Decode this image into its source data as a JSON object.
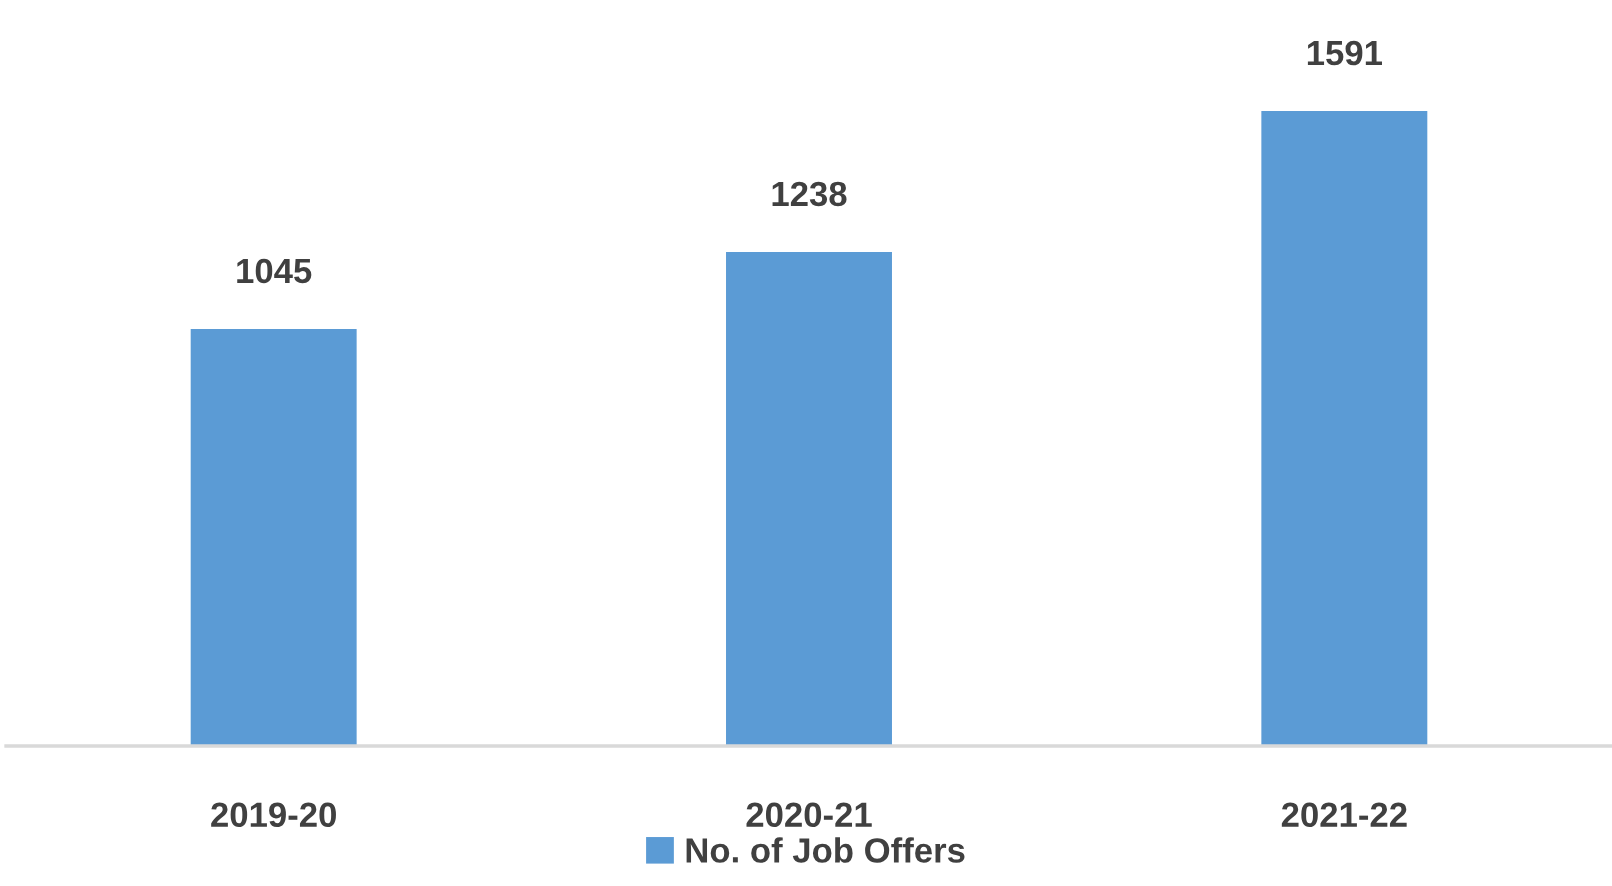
{
  "chart_data": {
    "type": "bar",
    "categories": [
      "2019-20",
      "2020-21",
      "2021-22"
    ],
    "series": [
      {
        "name": "No. of Job Offers",
        "color": "#5b9bd5",
        "values": [
          1045,
          1238,
          1591
        ]
      }
    ],
    "data_labels": true,
    "legend": "bottom",
    "grid": false,
    "tick_labels": "x"
  }
}
